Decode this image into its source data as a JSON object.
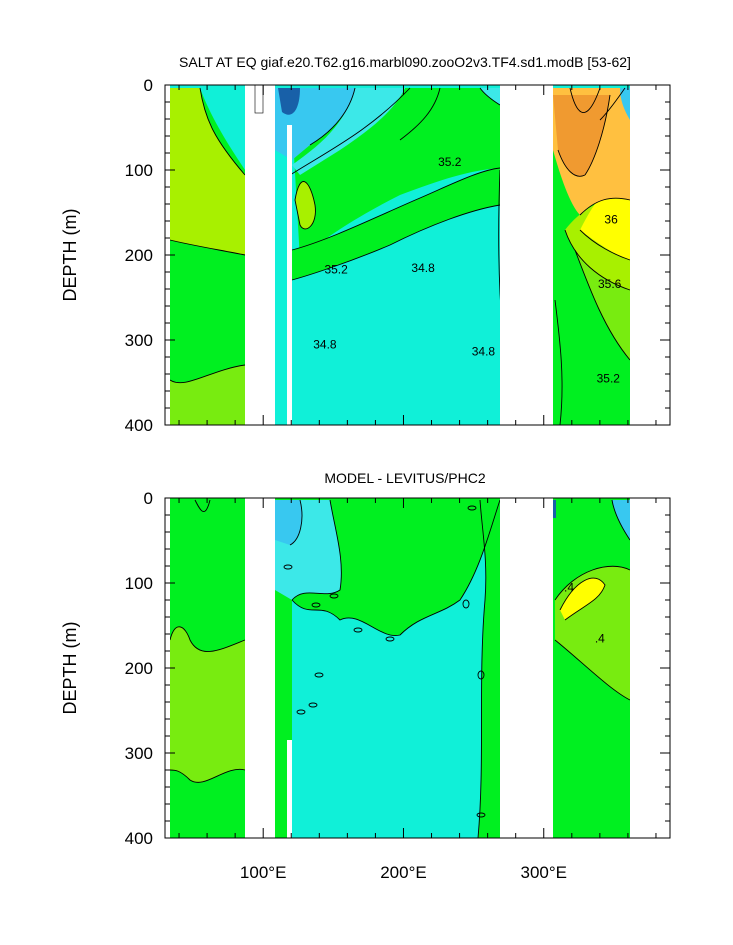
{
  "chart_data": [
    {
      "type": "contour",
      "title": "SALT AT EQ giaf.e20.T62.g16.marbl090.zooO2v3.TF4.sd1.modB [53-62]",
      "ylabel": "DEPTH (m)",
      "xlim": [
        30,
        390
      ],
      "ylim": [
        0,
        400
      ],
      "y_reversed": true,
      "y_ticks": [
        "0",
        "100",
        "200",
        "300",
        "400"
      ],
      "x_ticks": [
        "100°E",
        "200°E",
        "300°E"
      ],
      "x_tick_values": [
        100,
        200,
        300
      ],
      "contour_labels": [
        {
          "text": "35.2",
          "x": 233,
          "y": 95
        },
        {
          "text": "35.2",
          "x": 152,
          "y": 222
        },
        {
          "text": "34.8",
          "x": 214,
          "y": 220
        },
        {
          "text": "34.8",
          "x": 144,
          "y": 310
        },
        {
          "text": "34.8",
          "x": 257,
          "y": 318
        },
        {
          "text": "36",
          "x": 348,
          "y": 163
        },
        {
          "text": "35.6",
          "x": 347,
          "y": 239
        },
        {
          "text": "35.2",
          "x": 346,
          "y": 350
        }
      ],
      "fill_colors": {
        "lowest": "#1860a8",
        "low": "#38c8f0",
        "low_mid": "#3ce8e8",
        "mid_cyan": "#10f0d8",
        "green": "#00f020",
        "light_green": "#78ec10",
        "yellow_green": "#a8f000",
        "yellow": "#ffff00",
        "orange_light": "#ffc040",
        "orange": "#f09a30"
      }
    },
    {
      "type": "contour",
      "title": "MODEL - LEVITUS/PHC2",
      "ylabel": "DEPTH (m)",
      "xlim": [
        30,
        390
      ],
      "ylim": [
        0,
        400
      ],
      "y_reversed": true,
      "y_ticks": [
        "0",
        "100",
        "200",
        "300",
        "400"
      ],
      "x_ticks": [
        "100°E",
        "200°E",
        "300°E"
      ],
      "x_tick_values": [
        100,
        200,
        300
      ],
      "contour_labels": [
        {
          "text": ".4",
          "x": 318,
          "y": 110
        },
        {
          "text": ".4",
          "x": 340,
          "y": 170
        }
      ],
      "fill_colors": {
        "negative_strong": "#1860a8",
        "negative": "#38c8f0",
        "slightly_negative": "#3ce8e8",
        "near_zero_neg": "#10f0d8",
        "near_zero_pos": "#00f020",
        "positive": "#78ec10",
        "positive_strong": "#ffff00"
      }
    }
  ]
}
